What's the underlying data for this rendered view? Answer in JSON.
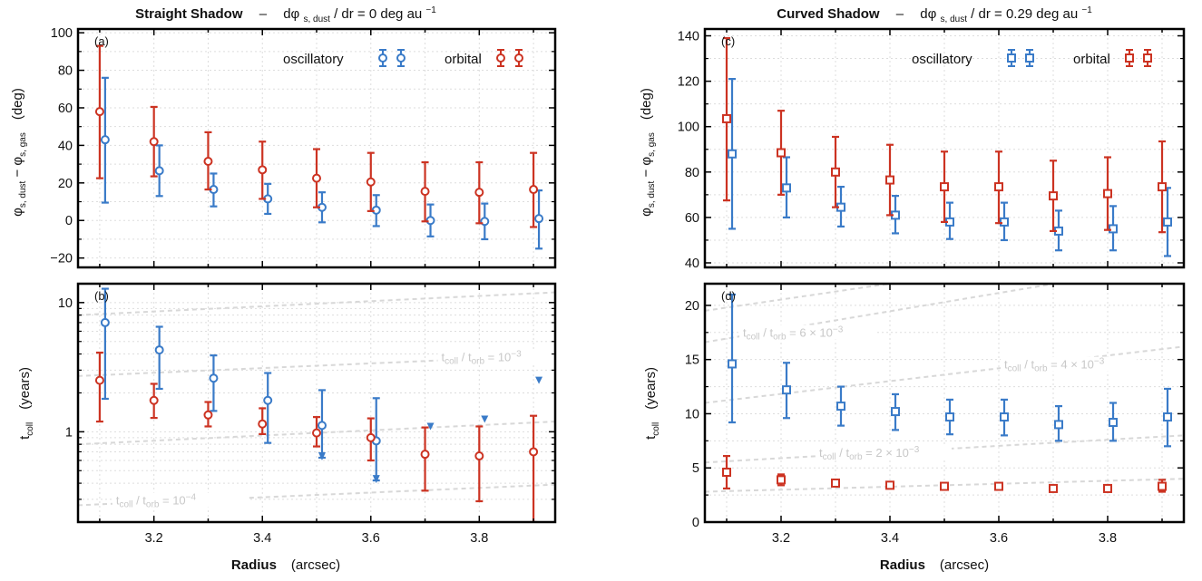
{
  "colors": {
    "oscillatory": "#3a7bc8",
    "orbital": "#cc3322",
    "refline": "#d8d8d8",
    "grid": "#dddddd"
  },
  "headers": [
    {
      "bold": "Straight Shadow",
      "dash": "–",
      "expr": "dφ",
      "expr_sub": "s, dust",
      "expr_rest": "/ dr = 0 deg au",
      "expr_sup": "−1"
    },
    {
      "bold": "Curved Shadow",
      "dash": "–",
      "expr": "dφ",
      "expr_sub": "s, dust",
      "expr_rest": "/ dr = 0.29 deg au",
      "expr_sup": "−1"
    }
  ],
  "legend": {
    "oscillatory": "oscillatory",
    "orbital": "orbital"
  },
  "axis_titles": {
    "x_bold": "Radius",
    "x_unit": "(arcsec)",
    "y_top_main": "φ",
    "y_top_sub1": "s, dust",
    "y_top_mid": " − φ",
    "y_top_sub2": "s, gas",
    "y_top_unit": "(deg)",
    "y_bottom_main": "t",
    "y_bottom_sub": "coll",
    "y_bottom_unit": "(years)"
  },
  "chart_data": [
    {
      "panel": "(a)",
      "type": "scatter",
      "marker": "circle",
      "x": [
        3.1,
        3.2,
        3.3,
        3.4,
        3.5,
        3.6,
        3.7,
        3.8,
        3.9
      ],
      "xlim": [
        3.06,
        3.94
      ],
      "ylim": [
        -25,
        102
      ],
      "yticks": [
        -20,
        0,
        20,
        40,
        60,
        80,
        100
      ],
      "ytick_labels": [
        "−20",
        "0",
        "20",
        "40",
        "60",
        "80",
        "100"
      ],
      "series": [
        {
          "name": "oscillatory",
          "color": "#3a7bc8",
          "values": [
            43,
            26.5,
            16.5,
            11.5,
            7,
            5.5,
            0,
            -0.5,
            1
          ],
          "err_lo": [
            9.5,
            13,
            7.5,
            3.5,
            -1,
            -3,
            -8.5,
            -10,
            -15
          ],
          "err_hi": [
            76,
            40,
            25,
            19.5,
            15,
            13.5,
            8.5,
            9,
            16
          ]
        },
        {
          "name": "orbital",
          "color": "#cc3322",
          "values": [
            58,
            42,
            31.5,
            27,
            22.5,
            20.5,
            15.5,
            15,
            16.5
          ],
          "err_lo": [
            22.5,
            23.5,
            16.5,
            11.5,
            7,
            5,
            -0.5,
            -1.5,
            -3.5
          ],
          "err_hi": [
            93,
            60.5,
            47,
            42,
            38,
            36,
            31,
            31,
            36
          ]
        }
      ]
    },
    {
      "panel": "(b)",
      "type": "scatter",
      "marker": "circle",
      "yscale": "log",
      "x": [
        3.1,
        3.2,
        3.3,
        3.4,
        3.5,
        3.6,
        3.7,
        3.8,
        3.9
      ],
      "xlim": [
        3.06,
        3.94
      ],
      "ylim": [
        0.2,
        14
      ],
      "yticks": [
        1,
        10
      ],
      "ytick_labels": [
        "1",
        "10"
      ],
      "xticks": [
        3.2,
        3.4,
        3.6,
        3.8
      ],
      "xtick_labels": [
        "3.2",
        "3.4",
        "3.6",
        "3.8"
      ],
      "series": [
        {
          "name": "oscillatory",
          "color": "#3a7bc8",
          "values": [
            7,
            4.3,
            2.6,
            1.75,
            1.12,
            0.85,
            null,
            null,
            null
          ],
          "err_lo": [
            1.8,
            2.15,
            1.45,
            0.82,
            0.63,
            0.42,
            null,
            null,
            null
          ],
          "err_hi": [
            12.8,
            6.5,
            3.9,
            2.85,
            2.1,
            1.82,
            null,
            null,
            null
          ],
          "upper_limits_x": [
            3.71,
            3.81,
            3.91
          ],
          "upper_limits_y": [
            1.1,
            1.25,
            2.5
          ]
        },
        {
          "name": "orbital",
          "color": "#cc3322",
          "values": [
            2.5,
            1.75,
            1.35,
            1.15,
            0.98,
            0.9,
            0.67,
            0.65,
            0.7
          ],
          "err_lo": [
            1.2,
            1.28,
            1.1,
            0.96,
            0.77,
            0.6,
            0.35,
            0.29,
            0.2
          ],
          "err_hi": [
            4.1,
            2.35,
            1.7,
            1.52,
            1.3,
            1.27,
            1.08,
            1.1,
            1.33
          ]
        }
      ],
      "reference_lines": [
        {
          "label": "t",
          "sub": "coll",
          "mid": " / t",
          "sub2": "orb",
          "rest": " = 10",
          "sup": "−3",
          "y_start": 2.7,
          "y_end": 3.9,
          "label_x": 3.73
        },
        {
          "label": "t",
          "sub": "coll",
          "mid": " / t",
          "sub2": "orb",
          "rest": " = 10",
          "sup": "−4",
          "y_start": 0.27,
          "y_end": 0.39,
          "label_x": 3.13
        },
        {
          "y_start": 0.8,
          "y_end": 1.2
        },
        {
          "y_start": 8.0,
          "y_end": 12.0
        }
      ]
    },
    {
      "panel": "(c)",
      "type": "scatter",
      "marker": "square",
      "x": [
        3.1,
        3.2,
        3.3,
        3.4,
        3.5,
        3.6,
        3.7,
        3.8,
        3.9
      ],
      "xlim": [
        3.06,
        3.94
      ],
      "ylim": [
        38,
        143
      ],
      "yticks": [
        40,
        60,
        80,
        100,
        120,
        140
      ],
      "ytick_labels": [
        "40",
        "60",
        "80",
        "100",
        "120",
        "140"
      ],
      "series": [
        {
          "name": "oscillatory",
          "color": "#3a7bc8",
          "values": [
            88,
            73,
            64.5,
            61,
            58,
            58,
            54,
            55,
            58
          ],
          "err_lo": [
            55,
            60,
            56,
            53,
            50.5,
            50,
            45.5,
            45.5,
            43
          ],
          "err_hi": [
            121,
            86.5,
            73.5,
            69.5,
            66.5,
            66.5,
            63,
            65,
            73
          ]
        },
        {
          "name": "orbital",
          "color": "#cc3322",
          "values": [
            103.5,
            88.5,
            80,
            76.5,
            73.5,
            73.5,
            69.5,
            70.5,
            73.5
          ],
          "err_lo": [
            67.5,
            70,
            64.5,
            61,
            58,
            57.5,
            54,
            54.5,
            53.5
          ],
          "err_hi": [
            139,
            107,
            95.5,
            92,
            89,
            89,
            85,
            86.5,
            93.5
          ]
        }
      ]
    },
    {
      "panel": "(d)",
      "type": "scatter",
      "marker": "square",
      "x": [
        3.1,
        3.2,
        3.3,
        3.4,
        3.5,
        3.6,
        3.7,
        3.8,
        3.9
      ],
      "xlim": [
        3.06,
        3.94
      ],
      "ylim": [
        0,
        22
      ],
      "yticks": [
        0,
        5,
        10,
        15,
        20
      ],
      "ytick_labels": [
        "0",
        "5",
        "10",
        "15",
        "20"
      ],
      "xticks": [
        3.2,
        3.4,
        3.6,
        3.8
      ],
      "xtick_labels": [
        "3.2",
        "3.4",
        "3.6",
        "3.8"
      ],
      "series": [
        {
          "name": "oscillatory",
          "color": "#3a7bc8",
          "values": [
            14.6,
            12.2,
            10.7,
            10.2,
            9.7,
            9.7,
            9.0,
            9.2,
            9.7
          ],
          "err_lo": [
            9.2,
            9.6,
            8.9,
            8.5,
            8.1,
            8.0,
            7.5,
            7.5,
            7.0
          ],
          "err_hi": [
            21,
            14.7,
            12.5,
            11.8,
            11.3,
            11.3,
            10.7,
            11.0,
            12.3
          ]
        },
        {
          "name": "orbital",
          "color": "#cc3322",
          "values": [
            4.6,
            3.9,
            3.6,
            3.4,
            3.3,
            3.3,
            3.1,
            3.1,
            3.3
          ],
          "err_lo": [
            3.1,
            3.4,
            3.3,
            3.1,
            3.1,
            3.1,
            2.9,
            2.8,
            2.8
          ],
          "err_hi": [
            6.1,
            4.4,
            3.9,
            3.7,
            3.5,
            3.5,
            3.3,
            3.4,
            3.9
          ]
        }
      ],
      "reference_lines": [
        {
          "label": "t",
          "sub": "coll",
          "mid": " / t",
          "sub2": "orb",
          "rest": " = 6 × 10",
          "sup": "−3",
          "y_start": 16.6,
          "y_end": 24.0,
          "label_x": 3.13
        },
        {
          "label": "t",
          "sub": "coll",
          "mid": " / t",
          "sub2": "orb",
          "rest": " = 4 × 10",
          "sup": "−3",
          "y_start": 11.0,
          "y_end": 16.2,
          "label_x": 3.61
        },
        {
          "label": "t",
          "sub": "coll",
          "mid": " / t",
          "sub2": "orb",
          "rest": " = 2 × 10",
          "sup": "−3",
          "y_start": 5.5,
          "y_end": 8.0,
          "label_x": 3.27
        },
        {
          "y_start": 2.8,
          "y_end": 4.0
        },
        {
          "y_start": 19.5,
          "y_end": 26.0
        }
      ]
    }
  ]
}
